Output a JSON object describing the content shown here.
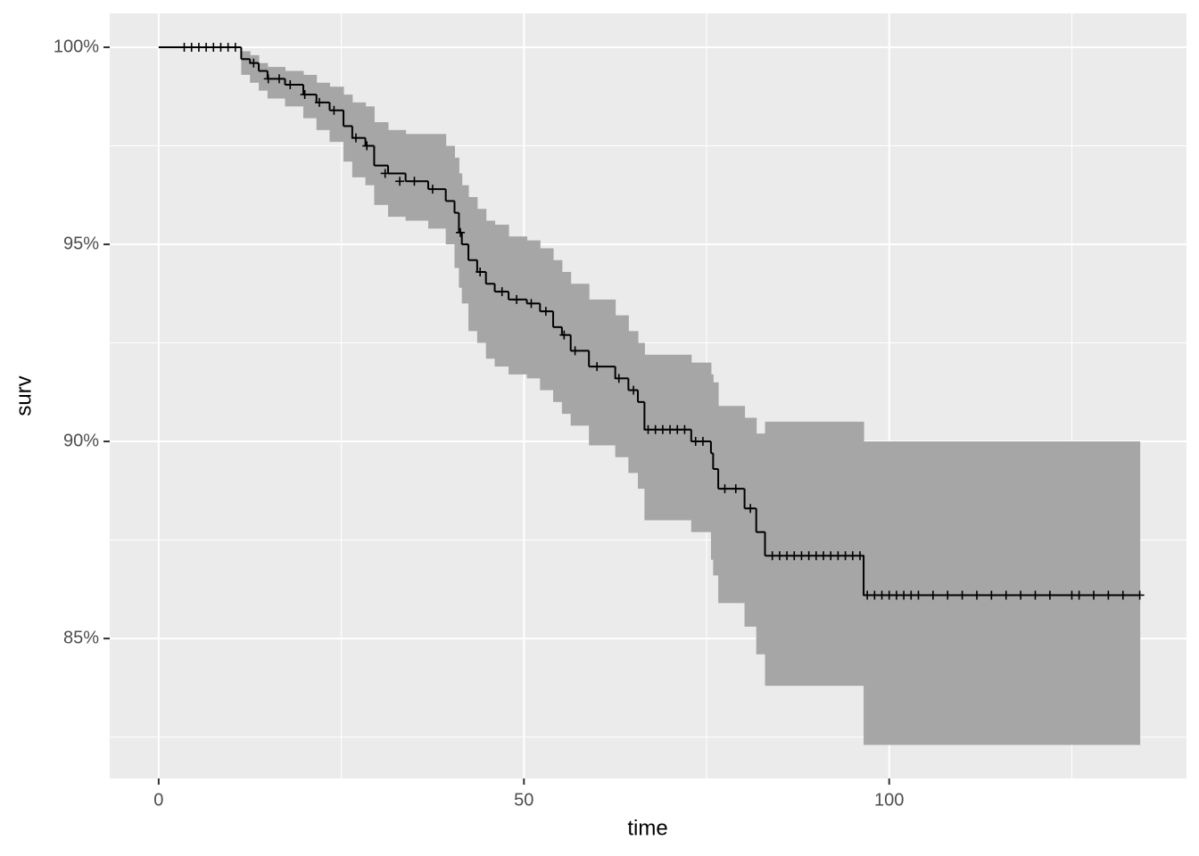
{
  "chart_data": {
    "type": "survival-step",
    "x_label": "time",
    "y_label": "surv",
    "xlim": [
      -6.7,
      140.7
    ],
    "ylim": [
      81.45,
      100.86
    ],
    "xticks": [
      0,
      50,
      100
    ],
    "yticks": [
      {
        "value": 85,
        "label": "85%"
      },
      {
        "value": 90,
        "label": "90%"
      },
      {
        "value": 95,
        "label": "95%"
      },
      {
        "value": 100,
        "label": "100%"
      }
    ],
    "xminorticks": [
      25,
      75,
      125
    ],
    "yminorticks": [
      82.5,
      87.5,
      92.5,
      97.5
    ],
    "grid": true,
    "line_color": "#000000",
    "band_color": "#a6a6a6",
    "x": [
      0,
      11.3,
      12.5,
      13.7,
      14.9,
      17.3,
      19.8,
      21.6,
      23.4,
      25.3,
      26.5,
      28.3,
      29.5,
      31.4,
      33.8,
      36.9,
      39.3,
      40.5,
      41.1,
      41.5,
      42.4,
      43.6,
      44.8,
      46.0,
      47.9,
      50.4,
      52.2,
      54.0,
      55.2,
      56.4,
      58.9,
      62.5,
      64.3,
      65.6,
      66.5,
      72.9,
      75.6,
      75.9,
      76.6,
      80.2,
      81.8,
      83.0,
      96.5,
      134.3
    ],
    "surv": [
      100,
      99.7,
      99.6,
      99.4,
      99.2,
      99.05,
      98.8,
      98.6,
      98.4,
      98.0,
      97.7,
      97.5,
      97.0,
      96.8,
      96.6,
      96.4,
      96.1,
      95.8,
      95.3,
      95.0,
      94.6,
      94.3,
      94.0,
      93.8,
      93.6,
      93.5,
      93.3,
      92.9,
      92.7,
      92.3,
      91.9,
      91.6,
      91.3,
      91.0,
      90.3,
      90.0,
      89.7,
      89.3,
      88.8,
      88.3,
      87.7,
      87.1,
      86.1,
      86.1
    ],
    "lower": [
      100,
      99.3,
      99.1,
      98.9,
      98.7,
      98.5,
      98.2,
      97.9,
      97.6,
      97.1,
      96.7,
      96.5,
      96.0,
      95.7,
      95.6,
      95.4,
      95.0,
      94.4,
      93.9,
      93.5,
      92.8,
      92.5,
      92.1,
      91.9,
      91.7,
      91.6,
      91.3,
      91.0,
      90.7,
      90.4,
      89.9,
      89.6,
      89.2,
      88.8,
      88.0,
      87.7,
      87.0,
      86.6,
      85.9,
      85.3,
      84.6,
      83.8,
      82.3,
      82.3
    ],
    "upper": [
      100,
      99.9,
      99.8,
      99.6,
      99.5,
      99.4,
      99.3,
      99.1,
      99.0,
      98.8,
      98.6,
      98.5,
      98.1,
      97.9,
      97.8,
      97.8,
      97.5,
      97.2,
      96.8,
      96.5,
      96.2,
      95.9,
      95.6,
      95.5,
      95.2,
      95.1,
      94.9,
      94.6,
      94.3,
      94.0,
      93.6,
      93.2,
      92.8,
      92.5,
      92.2,
      92.0,
      91.7,
      91.5,
      90.9,
      90.6,
      90.2,
      90.5,
      90.0,
      90.0
    ],
    "censored": {
      "x": [
        3.5,
        4.5,
        5.5,
        6.5,
        7.5,
        8.5,
        9.5,
        10.5,
        13,
        15,
        16.5,
        18,
        20,
        22,
        24,
        27,
        28.5,
        31,
        33,
        35,
        37.5,
        41.3,
        44,
        47,
        49,
        51,
        53,
        55.5,
        57,
        60,
        63,
        65,
        67,
        68,
        69,
        70,
        71,
        72,
        73.5,
        74.5,
        77.5,
        79,
        81,
        84,
        85,
        86,
        87,
        88,
        89,
        90,
        91,
        92,
        93,
        94,
        95,
        96,
        97,
        98,
        99,
        100,
        101,
        102,
        103,
        104,
        106,
        108,
        110,
        112,
        114,
        116,
        118,
        120,
        122,
        125,
        126,
        128,
        130,
        132,
        134.3
      ],
      "y": [
        100,
        100,
        100,
        100,
        100,
        100,
        100,
        100,
        99.6,
        99.2,
        99.2,
        99.05,
        98.8,
        98.6,
        98.4,
        97.7,
        97.5,
        96.8,
        96.6,
        96.6,
        96.4,
        95.3,
        94.3,
        93.8,
        93.6,
        93.5,
        93.3,
        92.7,
        92.3,
        91.9,
        91.6,
        91.3,
        90.3,
        90.3,
        90.3,
        90.3,
        90.3,
        90.3,
        90.0,
        90.0,
        88.8,
        88.8,
        88.3,
        87.1,
        87.1,
        87.1,
        87.1,
        87.1,
        87.1,
        87.1,
        87.1,
        87.1,
        87.1,
        87.1,
        87.1,
        87.1,
        86.1,
        86.1,
        86.1,
        86.1,
        86.1,
        86.1,
        86.1,
        86.1,
        86.1,
        86.1,
        86.1,
        86.1,
        86.1,
        86.1,
        86.1,
        86.1,
        86.1,
        86.1,
        86.1,
        86.1,
        86.1,
        86.1,
        86.1
      ]
    }
  }
}
